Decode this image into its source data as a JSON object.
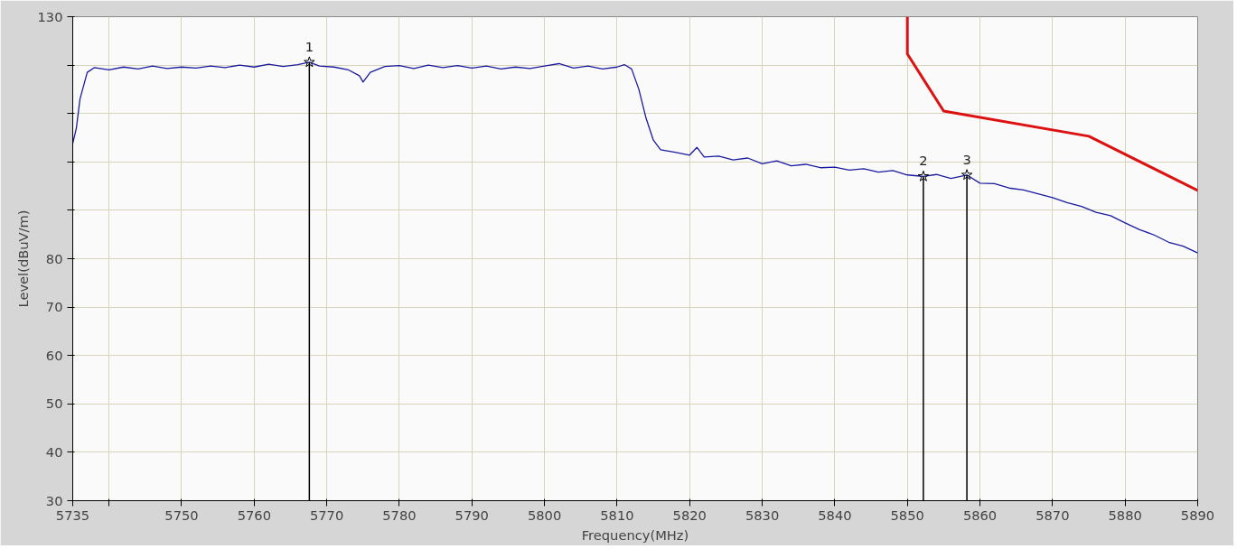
{
  "chart_data": {
    "type": "line",
    "xlabel": "Frequency(MHz)",
    "ylabel": "Level(dBuV/m)",
    "xlim": [
      5735,
      5890
    ],
    "ylim": [
      30,
      130
    ],
    "xticks": [
      5735,
      {
        "value": 5740,
        "label": null
      },
      5750,
      5760,
      5770,
      5780,
      5790,
      5800,
      5810,
      5820,
      5830,
      5840,
      5850,
      5860,
      5870,
      5880,
      5890
    ],
    "yticks": [
      30,
      40,
      50,
      60,
      70,
      80,
      {
        "value": 90,
        "label": null
      },
      {
        "value": 100,
        "label": null
      },
      {
        "value": 110,
        "label": null
      },
      {
        "value": 120,
        "label": null
      },
      130
    ],
    "grid": true,
    "marker": "none",
    "line_style": "solid",
    "series": [
      {
        "color": "#1a1aa0",
        "x": [
          5735,
          5735.5,
          5736,
          5737,
          5738,
          5740,
          5742,
          5744,
          5746,
          5748,
          5750,
          5752,
          5754,
          5756,
          5758,
          5760,
          5762,
          5764,
          5766,
          5767.6,
          5769,
          5771,
          5773,
          5774.5,
          5775,
          5776,
          5778,
          5780,
          5782,
          5784,
          5786,
          5788,
          5790,
          5792,
          5794,
          5796,
          5798,
          5800,
          5802,
          5804,
          5806,
          5808,
          5810,
          5811,
          5812,
          5813,
          5814,
          5815,
          5816,
          5818,
          5820,
          5821,
          5822,
          5824,
          5826,
          5828,
          5830,
          5832,
          5834,
          5836,
          5838,
          5840,
          5842,
          5844,
          5846,
          5848,
          5850,
          5852.2,
          5854,
          5856,
          5858.2,
          5860,
          5862,
          5864,
          5866,
          5868,
          5870,
          5872,
          5874,
          5876,
          5878,
          5880,
          5882,
          5884,
          5886,
          5888,
          5890
        ],
        "values": [
          103.8,
          107,
          113,
          118.5,
          119.5,
          119,
          119.6,
          119.2,
          119.8,
          119.3,
          119.6,
          119.4,
          119.8,
          119.5,
          120.0,
          119.6,
          120.2,
          119.7,
          120.1,
          120.6,
          119.8,
          119.6,
          119.0,
          117.8,
          116.5,
          118.5,
          119.7,
          119.9,
          119.3,
          120.0,
          119.5,
          119.9,
          119.4,
          119.8,
          119.2,
          119.6,
          119.3,
          119.8,
          120.3,
          119.4,
          119.8,
          119.2,
          119.6,
          120.1,
          119.2,
          115,
          109,
          104.5,
          102.5,
          102.0,
          101.4,
          103,
          101.0,
          101.2,
          100.4,
          100.8,
          99.6,
          100.2,
          99.2,
          99.5,
          98.8,
          98.9,
          98.3,
          98.6,
          97.9,
          98.2,
          97.3,
          97.0,
          97.4,
          96.6,
          97.3,
          95.6,
          95.5,
          94.6,
          94.2,
          93.4,
          92.6,
          91.6,
          90.8,
          89.6,
          88.9,
          87.4,
          86.0,
          84.9,
          83.4,
          82.6,
          81.2
        ]
      },
      {
        "color": "#dd1111",
        "x": [
          5850,
          5850,
          5855,
          5875,
          5890
        ],
        "values": [
          130,
          122.3,
          110.5,
          105.3,
          94.1
        ]
      },
      {
        "type": "lollipop",
        "color": "#000000",
        "marker": "star",
        "x": [
          5767.6,
          5852.2,
          5858.2
        ],
        "values": [
          120.6,
          97.0,
          97.3
        ]
      }
    ],
    "annotations": [
      {
        "text": "1",
        "x": 5767.6,
        "y": 120.6
      },
      {
        "text": "2",
        "x": 5852.2,
        "y": 97.0
      },
      {
        "text": "3",
        "x": 5858.2,
        "y": 97.3
      }
    ]
  }
}
